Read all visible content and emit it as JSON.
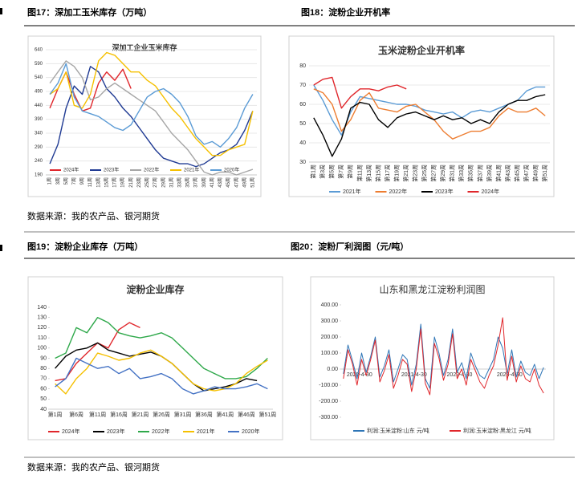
{
  "captions": [
    "图17：深加工玉米库存（万吨）",
    "图18：淀粉企业开机率",
    "图19：淀粉企业库存（万吨）",
    "图20：淀粉厂利润图（元/吨）"
  ],
  "sources": [
    "数据来源：我的农产品、银河期货",
    "数据来源：我的农产品、银河期货"
  ],
  "chart_data": [
    {
      "type": "line",
      "title": "深加工企业玉米库存",
      "categories": [
        "1周",
        "3周",
        "5周",
        "7周",
        "9周",
        "11周",
        "13周",
        "15周",
        "17周",
        "19周",
        "21周",
        "23周",
        "25周",
        "27周",
        "29周",
        "31周",
        "33周",
        "35周",
        "37周",
        "39周",
        "41周",
        "43周",
        "45周",
        "47周",
        "49周",
        "51周"
      ],
      "ylim": [
        190,
        640
      ],
      "yticks": [
        190,
        240,
        290,
        340,
        390,
        440,
        490,
        540,
        590,
        640
      ],
      "grid": true,
      "series": [
        {
          "name": "2024年",
          "color": "#e0262b",
          "values": [
            430,
            500,
            560,
            480,
            420,
            430,
            520,
            560,
            530,
            570,
            500,
            null,
            null,
            null,
            null,
            null,
            null,
            null,
            null,
            null,
            null,
            null,
            null,
            null,
            null,
            null
          ]
        },
        {
          "name": "2023年",
          "color": "#1f3a93",
          "values": [
            230,
            300,
            430,
            510,
            480,
            580,
            560,
            500,
            470,
            430,
            400,
            360,
            320,
            280,
            250,
            240,
            230,
            230,
            220,
            230,
            250,
            270,
            280,
            300,
            350,
            420
          ]
        },
        {
          "name": "2022年",
          "color": "#a6a6a6",
          "values": [
            520,
            560,
            600,
            580,
            540,
            460,
            470,
            500,
            520,
            500,
            480,
            460,
            440,
            420,
            380,
            340,
            310,
            280,
            240,
            200,
            190,
            200,
            200,
            190,
            200,
            210
          ]
        },
        {
          "name": "2021年",
          "color": "#f5c000",
          "values": [
            480,
            500,
            560,
            440,
            430,
            480,
            600,
            630,
            620,
            590,
            560,
            560,
            530,
            510,
            470,
            430,
            400,
            360,
            320,
            290,
            260,
            260,
            280,
            290,
            300,
            420
          ]
        },
        {
          "name": "2020年",
          "color": "#5b9bd5",
          "values": [
            480,
            520,
            590,
            470,
            420,
            410,
            400,
            380,
            360,
            350,
            370,
            420,
            470,
            490,
            500,
            480,
            450,
            400,
            330,
            300,
            310,
            290,
            320,
            360,
            430,
            480
          ]
        }
      ]
    },
    {
      "type": "line",
      "title": "玉米淀粉企业开机率",
      "categories": [
        "第1周",
        "第3周",
        "第5周",
        "第7周",
        "第9周",
        "第11周",
        "第13周",
        "第15周",
        "第17周",
        "第19周",
        "第21周",
        "第23周",
        "第25周",
        "第27周",
        "第29周",
        "第31周",
        "第33周",
        "第35周",
        "第37周",
        "第39周",
        "第41周",
        "第43周",
        "第45周",
        "第47周",
        "第49周",
        "第51周"
      ],
      "ylim": [
        30,
        80
      ],
      "yticks": [
        30,
        40,
        50,
        60,
        70,
        80
      ],
      "grid": true,
      "series": [
        {
          "name": "2021年",
          "color": "#5b9bd5",
          "values": [
            70,
            62,
            52,
            44,
            56,
            64,
            63,
            62,
            61,
            60,
            60,
            59,
            57,
            56,
            55,
            56,
            53,
            56,
            57,
            56,
            58,
            60,
            62,
            67,
            69,
            69
          ]
        },
        {
          "name": "2022年",
          "color": "#ed7d31",
          "values": [
            68,
            66,
            60,
            46,
            52,
            62,
            66,
            58,
            57,
            56,
            59,
            60,
            56,
            52,
            46,
            42,
            44,
            46,
            46,
            48,
            54,
            58,
            56,
            56,
            58,
            54
          ]
        },
        {
          "name": "2023年",
          "color": "#000000",
          "values": [
            53,
            44,
            33,
            42,
            58,
            61,
            60,
            52,
            48,
            53,
            55,
            56,
            54,
            52,
            54,
            52,
            53,
            50,
            52,
            50,
            56,
            60,
            62,
            62,
            64,
            65
          ]
        },
        {
          "name": "2024年",
          "color": "#e0262b",
          "values": [
            70,
            73,
            74,
            58,
            64,
            68,
            68,
            67,
            69,
            70,
            68,
            null,
            null,
            null,
            null,
            null,
            null,
            null,
            null,
            null,
            null,
            null,
            null,
            null,
            null,
            null
          ]
        }
      ]
    },
    {
      "type": "line",
      "title": "淀粉企业库存",
      "categories": [
        "第1周",
        null,
        "第6周",
        null,
        "第11周",
        null,
        "第16周",
        null,
        "第21周",
        null,
        "第26周",
        null,
        "第31周",
        null,
        "第36周",
        null,
        "第41周",
        null,
        "第46周",
        null,
        "第51周"
      ],
      "ylim": [
        40,
        140
      ],
      "yticks": [
        40,
        50,
        60,
        70,
        80,
        90,
        100,
        110,
        120,
        130,
        140
      ],
      "grid": false,
      "series": [
        {
          "name": "2024年",
          "color": "#e0262b",
          "values": [
            68,
            70,
            85,
            95,
            105,
            100,
            118,
            125,
            120,
            null,
            null,
            null,
            null,
            null,
            null,
            null,
            null,
            null,
            null,
            null,
            null
          ]
        },
        {
          "name": "2023年",
          "color": "#000000",
          "values": [
            80,
            92,
            98,
            100,
            105,
            98,
            95,
            92,
            94,
            96,
            92,
            85,
            75,
            65,
            58,
            60,
            62,
            65,
            70,
            68,
            null
          ]
        },
        {
          "name": "2022年",
          "color": "#2ea84a",
          "values": [
            90,
            95,
            120,
            115,
            130,
            125,
            115,
            112,
            110,
            112,
            115,
            110,
            100,
            90,
            80,
            75,
            70,
            70,
            72,
            80,
            90
          ]
        },
        {
          "name": "2021年",
          "color": "#f5c000",
          "values": [
            65,
            55,
            70,
            80,
            95,
            92,
            88,
            90,
            95,
            98,
            92,
            85,
            75,
            65,
            60,
            58,
            60,
            65,
            75,
            82,
            88
          ]
        },
        {
          "name": "2020年",
          "color": "#4472c4",
          "values": [
            62,
            70,
            90,
            85,
            80,
            82,
            75,
            80,
            70,
            72,
            75,
            70,
            60,
            55,
            58,
            62,
            60,
            60,
            62,
            65,
            60
          ]
        }
      ]
    },
    {
      "type": "line",
      "title": "山东和黑龙江淀粉利润图",
      "categories": [
        "2020-4-30",
        null,
        null,
        null,
        null,
        null,
        null,
        null,
        null,
        null,
        null,
        null,
        "2021-4-30",
        null,
        null,
        null,
        null,
        null,
        null,
        null,
        null,
        null,
        "2022-4-30",
        null,
        null,
        null,
        null,
        null,
        null,
        null,
        null,
        null,
        null,
        "2023-4-30",
        null,
        null,
        null,
        null,
        null,
        null,
        null,
        null,
        null,
        null,
        null
      ],
      "ylim": [
        -300,
        400
      ],
      "yticks": [
        {
          "value": -300,
          "label": "-300.00"
        },
        {
          "value": -200,
          "label": "-200.00"
        },
        {
          "value": -100,
          "label": "-100.00"
        },
        {
          "value": 0,
          "label": "0.00"
        },
        {
          "value": 100,
          "label": "100.00"
        },
        {
          "value": 200,
          "label": "200.00"
        },
        {
          "value": 300,
          "label": "300.00"
        },
        {
          "value": 400,
          "label": "400.00"
        }
      ],
      "grid": false,
      "series": [
        {
          "name": "利润:玉米淀粉:山东 元/吨",
          "color": "#2e75b6",
          "values": [
            -30,
            150,
            50,
            -60,
            100,
            -20,
            80,
            200,
            -50,
            20,
            120,
            -80,
            0,
            90,
            60,
            -100,
            30,
            280,
            -60,
            -120,
            200,
            100,
            -40,
            60,
            250,
            -20,
            40,
            -60,
            100,
            20,
            -40,
            -60,
            0,
            60,
            200,
            130,
            -30,
            120,
            -50,
            50,
            -20,
            -40,
            30,
            -60,
            10
          ]
        },
        {
          "name": "利润:玉米淀粉:黑龙江 元/吨",
          "color": "#e0262b",
          "values": [
            -60,
            120,
            30,
            -100,
            60,
            -40,
            60,
            180,
            -80,
            -10,
            90,
            -120,
            -40,
            60,
            30,
            -140,
            0,
            250,
            -90,
            -160,
            160,
            70,
            -70,
            30,
            220,
            -60,
            0,
            -100,
            60,
            -10,
            -80,
            -120,
            -40,
            20,
            150,
            320,
            -70,
            80,
            -80,
            20,
            -60,
            -80,
            0,
            -100,
            -150
          ]
        }
      ]
    }
  ]
}
